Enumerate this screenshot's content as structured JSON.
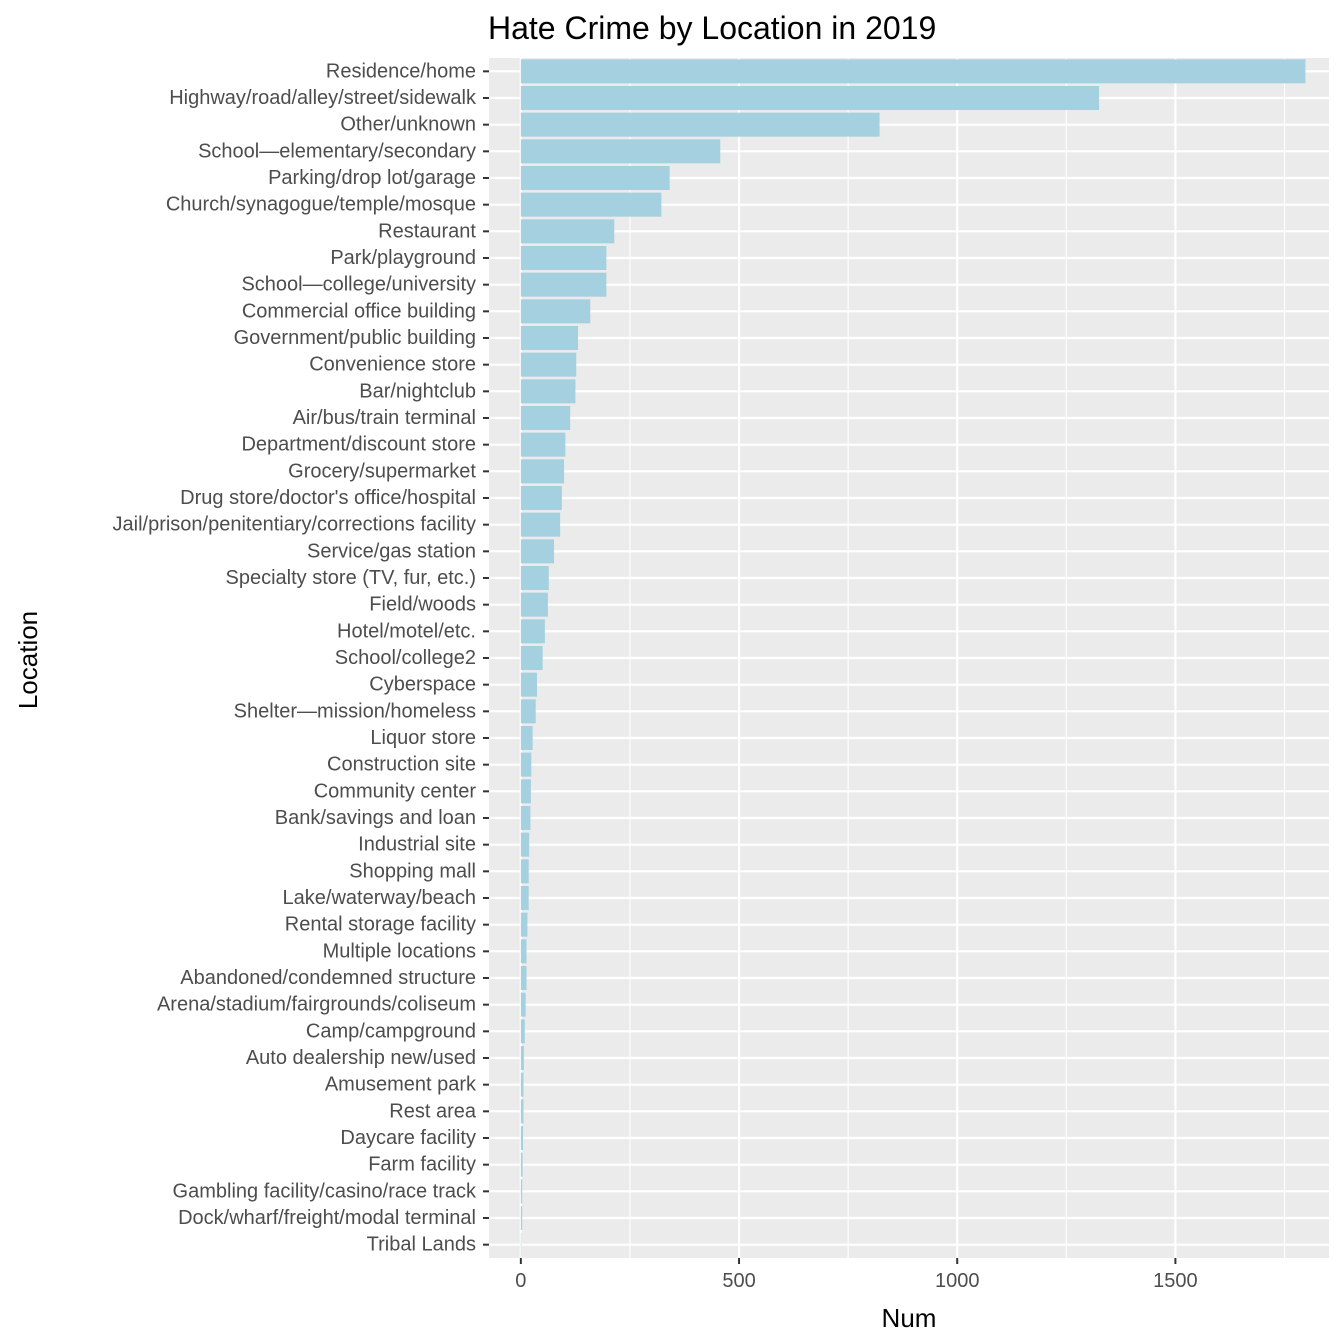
{
  "chart_data": {
    "type": "bar",
    "orientation": "horizontal",
    "title": "Hate Crime by Location in 2019",
    "xlabel": "Num",
    "ylabel": "Location",
    "xlim": [
      -73,
      1852
    ],
    "xticks": [
      0,
      500,
      1000,
      1500
    ],
    "grid": true,
    "legend": "none",
    "colors": {
      "bar": "#a5d0e0",
      "panel": "#ebebeb",
      "gridline": "#ffffff",
      "tick": "#333333"
    },
    "categories": [
      "Residence/home",
      "Highway/road/alley/street/sidewalk",
      "Other/unknown",
      "School—elementary/secondary",
      "Parking/drop lot/garage",
      "Church/synagogue/temple/mosque",
      "Restaurant",
      "Park/playground",
      "School—college/university",
      "Commercial office building",
      "Government/public building",
      "Convenience store",
      "Bar/nightclub",
      "Air/bus/train terminal",
      "Department/discount store",
      "Grocery/supermarket",
      "Drug store/doctor's office/hospital",
      "Jail/prison/penitentiary/corrections facility",
      "Service/gas station",
      "Specialty store (TV, fur, etc.)",
      "Field/woods",
      "Hotel/motel/etc.",
      "School/college2",
      "Cyberspace",
      "Shelter—mission/homeless",
      "Liquor store",
      "Construction site",
      "Community center",
      "Bank/savings and loan",
      "Industrial site",
      "Shopping mall",
      "Lake/waterway/beach",
      "Rental storage facility",
      "Multiple locations",
      "Abandoned/condemned structure",
      "Arena/stadium/fairgrounds/coliseum",
      "Camp/campground",
      "Auto dealership new/used",
      "Amusement park",
      "Rest area",
      "Daycare facility",
      "Farm facility",
      "Gambling facility/casino/race track",
      "Dock/wharf/freight/modal terminal",
      "Tribal Lands"
    ],
    "values": [
      1798,
      1325,
      822,
      457,
      341,
      322,
      214,
      196,
      196,
      159,
      131,
      127,
      125,
      113,
      102,
      99,
      94,
      90,
      76,
      64,
      62,
      55,
      50,
      37,
      34,
      27,
      24,
      23,
      22,
      19,
      18,
      18,
      15,
      13,
      13,
      11,
      9,
      7,
      6,
      6,
      5,
      4,
      3,
      3,
      1
    ]
  }
}
